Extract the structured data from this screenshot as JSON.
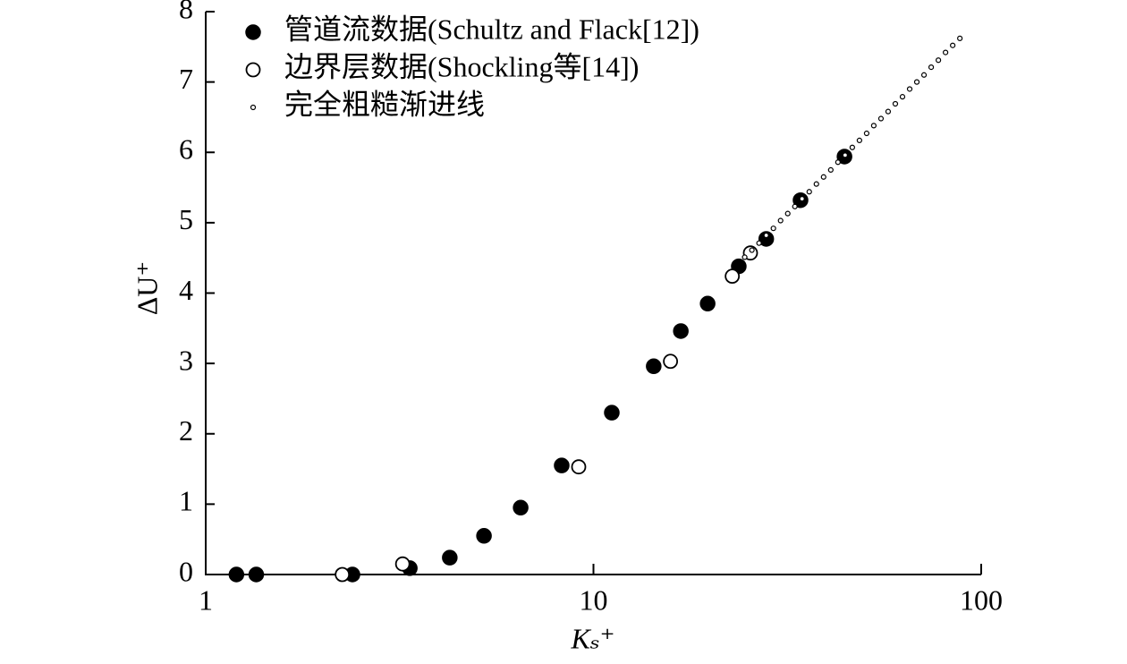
{
  "chart_data": {
    "type": "scatter",
    "xlabel": "Kₛ⁺",
    "ylabel": "ΔU⁺",
    "xlog": true,
    "xlim": [
      1,
      100
    ],
    "xticks": [
      1,
      10,
      100
    ],
    "ylim": [
      0,
      8
    ],
    "yticks": [
      0,
      1,
      2,
      3,
      4,
      5,
      6,
      7,
      8
    ],
    "legend": "upper left",
    "series": [
      {
        "name": "管道流数据(Schultz and Flack[12])",
        "color": "#000000",
        "marker": "filled",
        "x": [
          1.2,
          1.35,
          2.39,
          3.36,
          4.26,
          5.22,
          6.49,
          8.28,
          11.15,
          14.3,
          16.8,
          19.7,
          23.7,
          27.9,
          34.2,
          44.4
        ],
        "values": [
          0,
          0,
          0,
          0.09,
          0.24,
          0.55,
          0.95,
          1.55,
          2.3,
          2.96,
          3.46,
          3.85,
          4.38,
          4.77,
          5.32,
          5.94
        ]
      },
      {
        "name": "边界层数据(Shockling等[14])",
        "color": "#000000",
        "marker": "open",
        "x": [
          2.25,
          3.22,
          9.16,
          15.8,
          22.8,
          25.4
        ],
        "values": [
          0,
          0.15,
          1.53,
          3.03,
          4.24,
          4.57
        ]
      },
      {
        "name": "完全粗糙渐进线",
        "color": "#000000",
        "marker": "small-open",
        "x": [
          24.55,
          25.62,
          26.73,
          27.9,
          29.11,
          30.38,
          31.7,
          33.07,
          34.51,
          36.02,
          37.58,
          39.22,
          40.93,
          42.71,
          44.57,
          46.51,
          48.53,
          50.65,
          52.84,
          55.15,
          57.54,
          60.05,
          62.66,
          65.39,
          68.23,
          71.2,
          74.3,
          77.54,
          80.91,
          84.43,
          88.1
        ],
        "values": [
          4.51,
          4.61,
          4.71,
          4.82,
          4.92,
          5.03,
          5.13,
          5.23,
          5.34,
          5.44,
          5.55,
          5.65,
          5.75,
          5.86,
          5.96,
          6.07,
          6.17,
          6.27,
          6.38,
          6.48,
          6.58,
          6.69,
          6.79,
          6.9,
          7.0,
          7.1,
          7.21,
          7.31,
          7.42,
          7.52,
          7.62
        ]
      }
    ]
  }
}
